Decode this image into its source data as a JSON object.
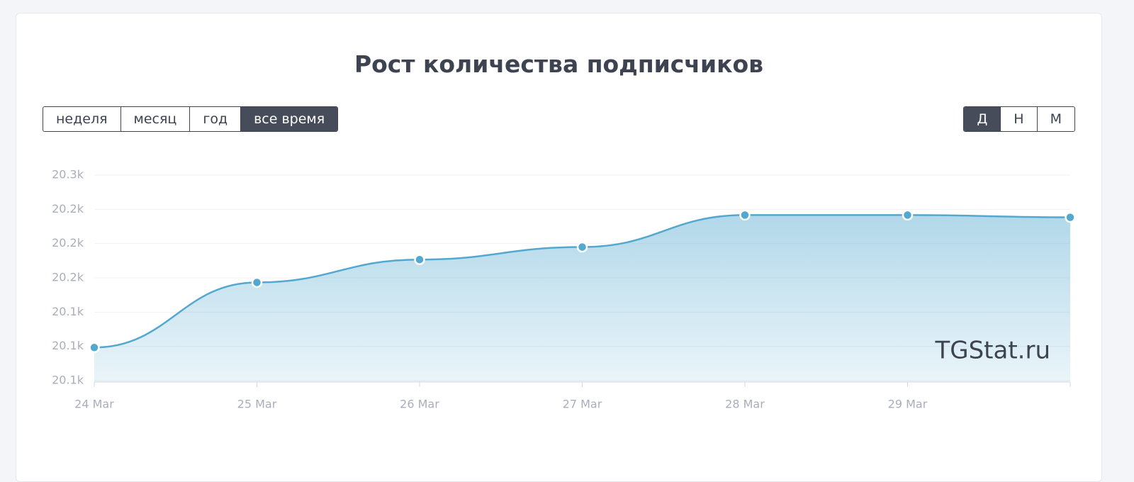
{
  "header": {
    "title": "Рост количества подписчиков"
  },
  "controls": {
    "period": [
      "неделя",
      "месяц",
      "год",
      "все время"
    ],
    "period_active": 3,
    "granularity": [
      "Д",
      "Н",
      "М"
    ],
    "granularity_active": 0
  },
  "watermark": "TGStat.ru",
  "chart_data": {
    "type": "area",
    "categories": [
      "24 Mar",
      "25 Mar",
      "26 Mar",
      "27 Mar",
      "28 Mar",
      "29 Mar",
      null
    ],
    "values": [
      20109,
      20166,
      20186,
      20197,
      20225,
      20225,
      20223
    ],
    "color": "#53a8cf",
    "ylim": [
      20080,
      20260
    ],
    "yticks": [
      {
        "value": 20080,
        "label": "20.1k"
      },
      {
        "value": 20110,
        "label": "20.1k"
      },
      {
        "value": 20140,
        "label": "20.1k"
      },
      {
        "value": 20170,
        "label": "20.2k"
      },
      {
        "value": 20200,
        "label": "20.2k"
      },
      {
        "value": 20230,
        "label": "20.2k"
      },
      {
        "value": 20260,
        "label": "20.3k"
      }
    ],
    "grid": true
  }
}
